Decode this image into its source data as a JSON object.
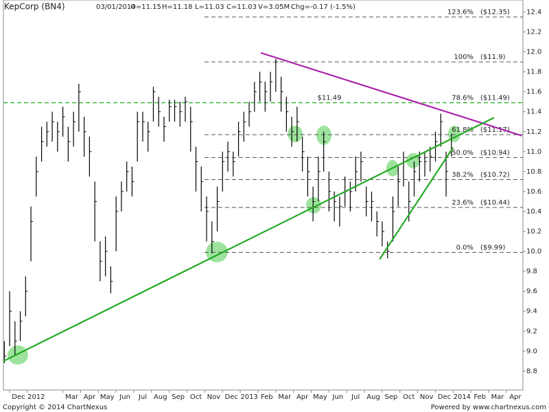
{
  "chart_data": {
    "type": "ohlc",
    "title": "KepCorp (BN4)",
    "header": [
      "03/01/2014",
      "O=11.15",
      "H=11.18",
      "L=11.03",
      "C=11.03",
      "V=3.05M",
      "Chg=-0.17 (-1.5%)"
    ],
    "footer": [
      "Copyright © 2014 ChartNexus",
      "Powered by www.chartnexus.com"
    ],
    "color": "#000000",
    "x": [
      0.2,
      0.5,
      0.8,
      1.1,
      1.4,
      1.7,
      2.0,
      2.3,
      2.6,
      2.9,
      3.2,
      3.5,
      3.8,
      4.1,
      4.4,
      4.7,
      5.0,
      5.3,
      5.6,
      5.9,
      6.2,
      6.5,
      6.8,
      7.1,
      7.4,
      7.7,
      8.0,
      8.3,
      8.6,
      8.9,
      9.2,
      9.5,
      9.8,
      10.1,
      10.4,
      10.7,
      11.0,
      11.3,
      11.6,
      11.9,
      12.2,
      12.5,
      12.8,
      13.1,
      13.4,
      13.7,
      14.0,
      14.3,
      14.6,
      14.9,
      15.2,
      15.5,
      15.8,
      16.1,
      16.4,
      16.7,
      17.0,
      17.3,
      17.6,
      17.9,
      18.2,
      18.5,
      18.8,
      19.1,
      19.4,
      19.7,
      20.0,
      20.3,
      20.6,
      20.9,
      21.2,
      21.5,
      21.8,
      22.1,
      22.4,
      22.7,
      23.0,
      23.3,
      23.6,
      23.9,
      24.2,
      24.5,
      24.8,
      25.1,
      25.4
    ],
    "high": [
      9.1,
      9.6,
      9.3,
      9.4,
      9.75,
      10.45,
      10.95,
      11.25,
      11.3,
      11.4,
      11.3,
      11.45,
      11.25,
      11.4,
      11.68,
      11.35,
      11.15,
      10.7,
      10.1,
      10.15,
      9.85,
      10.55,
      10.7,
      10.9,
      10.85,
      11.4,
      11.4,
      11.3,
      11.65,
      11.55,
      11.35,
      11.52,
      11.52,
      11.5,
      11.55,
      11.45,
      11.05,
      10.85,
      10.55,
      10.3,
      10.65,
      11.0,
      11.1,
      11.0,
      11.3,
      11.4,
      11.5,
      11.7,
      11.8,
      11.7,
      11.8,
      11.93,
      11.75,
      11.55,
      11.35,
      11.45,
      11.15,
      10.95,
      10.65,
      10.95,
      11.2,
      10.8,
      10.6,
      10.55,
      10.75,
      10.7,
      10.95,
      11.0,
      10.65,
      10.6,
      10.4,
      10.3,
      10.1,
      10.55,
      10.85,
      11.0,
      10.7,
      10.9,
      11.0,
      11.0,
      11.05,
      11.2,
      11.38,
      11.0,
      11.18
    ],
    "low": [
      8.88,
      9.05,
      8.95,
      9.1,
      9.35,
      9.9,
      10.55,
      10.9,
      11.05,
      11.1,
      11.0,
      11.15,
      10.9,
      11.05,
      11.2,
      10.95,
      10.75,
      10.1,
      9.7,
      9.75,
      9.58,
      10.0,
      10.4,
      10.6,
      10.55,
      10.9,
      11.1,
      11.0,
      11.3,
      11.25,
      11.1,
      11.3,
      11.3,
      11.25,
      11.3,
      11.0,
      10.6,
      10.4,
      10.1,
      9.98,
      10.2,
      10.6,
      10.8,
      10.75,
      10.95,
      11.1,
      11.25,
      11.4,
      11.5,
      11.4,
      11.5,
      11.6,
      11.4,
      11.2,
      11.05,
      11.1,
      10.8,
      10.55,
      10.3,
      10.5,
      10.8,
      10.4,
      10.3,
      10.25,
      10.45,
      10.4,
      10.6,
      10.7,
      10.35,
      10.3,
      10.15,
      10.05,
      9.93,
      10.1,
      10.45,
      10.65,
      10.3,
      10.55,
      10.7,
      10.75,
      10.8,
      10.9,
      11.05,
      10.55,
      10.95
    ],
    "close": [
      8.95,
      9.4,
      9.1,
      9.3,
      9.6,
      10.3,
      10.8,
      11.1,
      11.2,
      11.3,
      11.2,
      11.35,
      11.1,
      11.3,
      11.6,
      11.2,
      11.0,
      10.5,
      9.9,
      10.0,
      9.7,
      10.4,
      10.6,
      10.8,
      10.7,
      11.3,
      11.3,
      11.2,
      11.6,
      11.4,
      11.25,
      11.45,
      11.45,
      11.4,
      11.5,
      11.3,
      10.9,
      10.7,
      10.4,
      10.1,
      10.5,
      10.9,
      11.0,
      10.9,
      11.2,
      11.3,
      11.4,
      11.6,
      11.7,
      11.6,
      11.7,
      11.9,
      11.6,
      11.4,
      11.2,
      11.3,
      11.0,
      10.8,
      10.5,
      10.8,
      11.1,
      10.6,
      10.5,
      10.45,
      10.6,
      10.6,
      10.8,
      10.9,
      10.5,
      10.5,
      10.3,
      10.2,
      10.0,
      10.4,
      10.7,
      10.9,
      10.5,
      10.8,
      10.9,
      10.9,
      10.95,
      11.1,
      11.3,
      10.8,
      11.03
    ],
    "xlim": [
      0.15,
      29.43
    ],
    "ylim": [
      8.61,
      12.52
    ],
    "xticks": [
      {
        "value": 1,
        "label": "Dec"
      },
      {
        "value": 2,
        "label": "2012"
      },
      {
        "value": 4,
        "label": "Mar"
      },
      {
        "value": 5,
        "label": "Apr"
      },
      {
        "value": 6,
        "label": "May"
      },
      {
        "value": 7,
        "label": "Jun"
      },
      {
        "value": 8,
        "label": "Jul"
      },
      {
        "value": 9,
        "label": "Aug"
      },
      {
        "value": 10,
        "label": "Sep"
      },
      {
        "value": 11,
        "label": "Oct"
      },
      {
        "value": 12,
        "label": "Nov"
      },
      {
        "value": 13,
        "label": "Dec"
      },
      {
        "value": 14,
        "label": "2013"
      },
      {
        "value": 15,
        "label": "Feb"
      },
      {
        "value": 16,
        "label": "Mar"
      },
      {
        "value": 17,
        "label": "Apr"
      },
      {
        "value": 18,
        "label": "May"
      },
      {
        "value": 19,
        "label": "Jun"
      },
      {
        "value": 20,
        "label": "Jul"
      },
      {
        "value": 21,
        "label": "Aug"
      },
      {
        "value": 22,
        "label": "Sep"
      },
      {
        "value": 23,
        "label": "Oct"
      },
      {
        "value": 24,
        "label": "Nov"
      },
      {
        "value": 25,
        "label": "Dec"
      },
      {
        "value": 26,
        "label": "2014"
      },
      {
        "value": 27,
        "label": "Feb"
      },
      {
        "value": 28,
        "label": "Mar"
      },
      {
        "value": 29,
        "label": "Apr"
      }
    ],
    "yticks": [
      8.8,
      {
        "value": 9.0,
        "label": "9.0"
      },
      9.2,
      9.4,
      9.6,
      9.8,
      {
        "value": 10.0,
        "label": "10.0"
      },
      10.2,
      10.4,
      10.6,
      10.8,
      {
        "value": 11.0,
        "label": "11.0"
      },
      11.2,
      11.4,
      11.6,
      11.8,
      {
        "value": 12.0,
        "label": "12.0"
      },
      12.2,
      12.4
    ],
    "fib_start_x": 11.48,
    "fib_levels": [
      {
        "label": "123.6%",
        "value": 12.35,
        "value_label": "($12.35)",
        "color": "#555555"
      },
      {
        "label": "100%",
        "value": 11.9,
        "value_label": "($11.9)",
        "color": "#555555"
      },
      {
        "label": "78.6%",
        "value": 11.49,
        "value_label": "($11.49)",
        "color": "#22aa22",
        "full_width": true,
        "annotation": "$11.49"
      },
      {
        "label": "61.8%",
        "value": 11.17,
        "value_label": "($11.17)",
        "color": "#555555"
      },
      {
        "label": "50.0%",
        "value": 10.94,
        "value_label": "($10.94)",
        "color": "#555555"
      },
      {
        "label": "38.2%",
        "value": 10.72,
        "value_label": "($10.72)",
        "color": "#555555"
      },
      {
        "label": "23.6%",
        "value": 10.44,
        "value_label": "($10.44)",
        "color": "#555555"
      },
      {
        "label": "0.0%",
        "value": 9.99,
        "value_label": "($9.99)",
        "color": "#555555"
      }
    ],
    "trend_lines": [
      {
        "color": "#aa22aa",
        "x": [
          14.66,
          29.36
        ],
        "y": [
          11.99,
          11.16
        ]
      },
      {
        "color": "#22aa22",
        "x": [
          0.15,
          27.8
        ],
        "y": [
          8.9,
          11.34
        ]
      },
      {
        "color": "#22aa22",
        "x": [
          21.35,
          25.49
        ],
        "y": [
          9.92,
          11.04
        ]
      }
    ]
  }
}
